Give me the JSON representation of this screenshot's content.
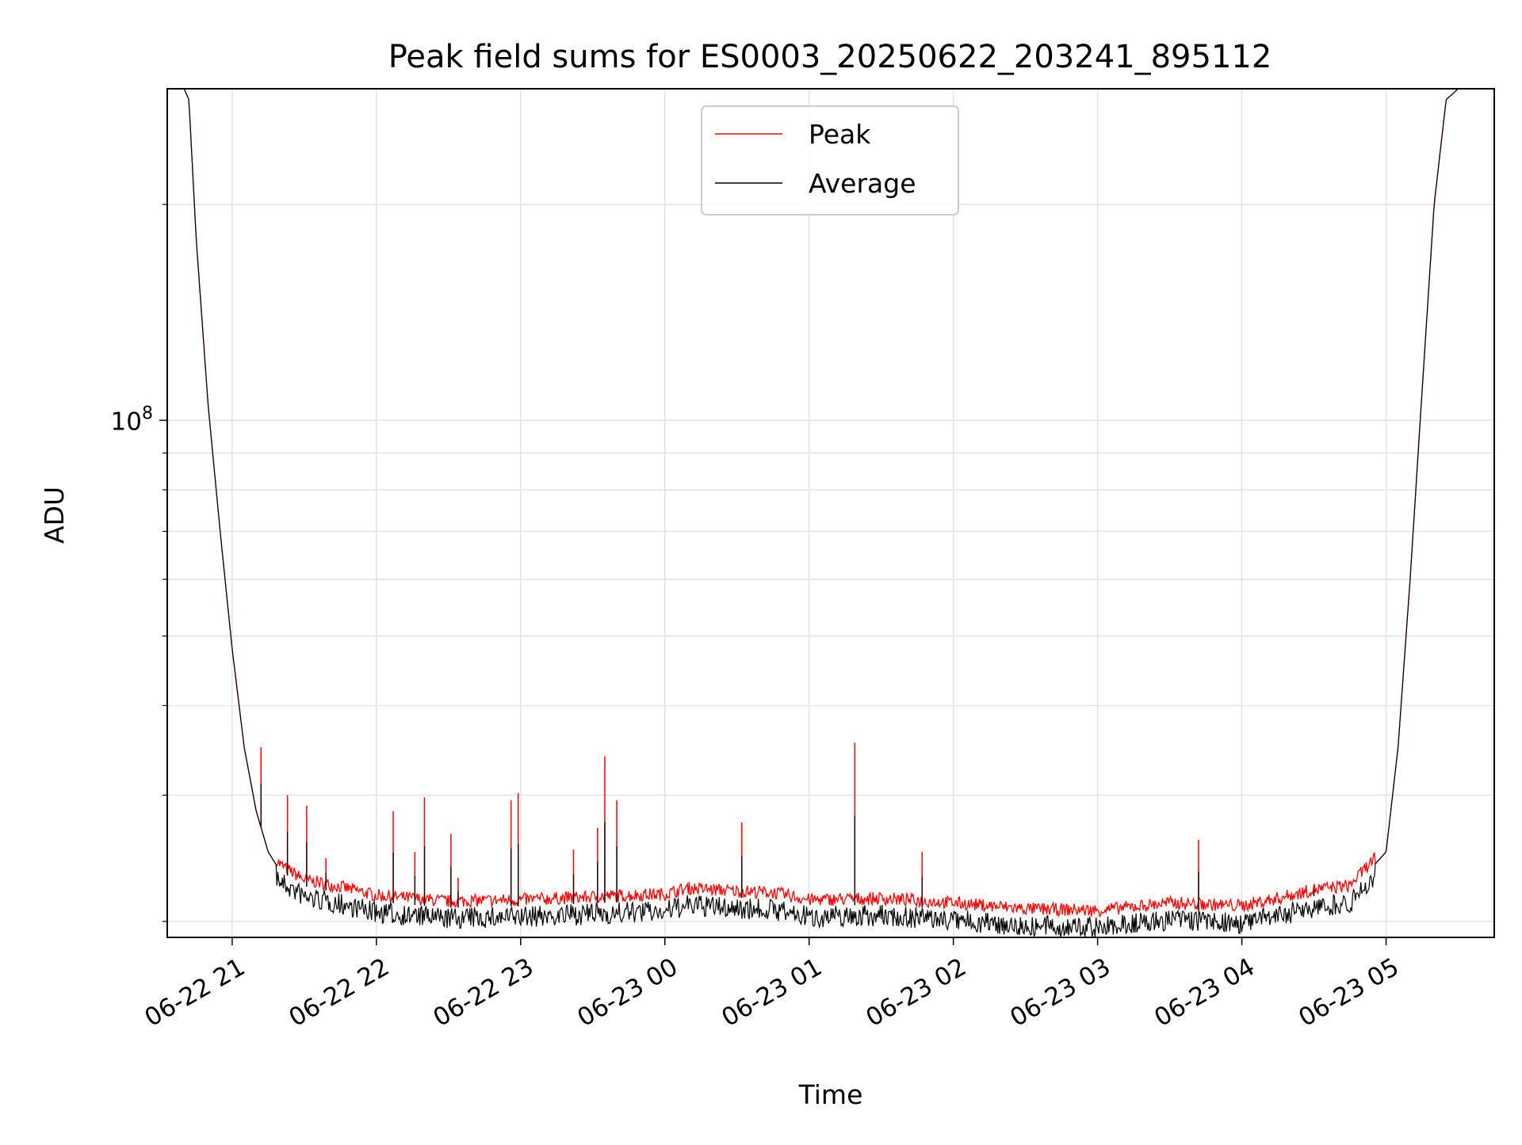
{
  "chart_data": {
    "type": "line",
    "title": "Peak field sums for ES0003_20250622_203241_895112",
    "xlabel": "Time",
    "ylabel": "ADU",
    "yscale": "log",
    "ylim": [
      19000000,
      290000000
    ],
    "xlim": [
      "2025-06-22 20:33",
      "2025-06-23 05:45"
    ],
    "grid": true,
    "legend_position": "upper center",
    "x_ticks": [
      {
        "value": "2025-06-22 21:00",
        "label": "06-22 21"
      },
      {
        "value": "2025-06-22 22:00",
        "label": "06-22 22"
      },
      {
        "value": "2025-06-22 23:00",
        "label": "06-22 23"
      },
      {
        "value": "2025-06-23 00:00",
        "label": "06-23 00"
      },
      {
        "value": "2025-06-23 01:00",
        "label": "06-23 01"
      },
      {
        "value": "2025-06-23 02:00",
        "label": "06-23 02"
      },
      {
        "value": "2025-06-23 03:00",
        "label": "06-23 03"
      },
      {
        "value": "2025-06-23 04:00",
        "label": "06-23 04"
      },
      {
        "value": "2025-06-23 05:00",
        "label": "06-23 05"
      }
    ],
    "y_major_ticks": [
      {
        "value": 100000000,
        "base": "10",
        "exponent": "8"
      }
    ],
    "y_minor_ticks": [
      20000000,
      30000000,
      40000000,
      50000000,
      60000000,
      70000000,
      80000000,
      90000000,
      200000000
    ],
    "series": [
      {
        "name": "Peak",
        "color": "#ff0000",
        "baseline": [
          [
            "2025-06-22 20:40",
            290000000
          ],
          [
            "2025-06-22 20:42",
            280000000
          ],
          [
            "2025-06-22 20:45",
            180000000
          ],
          [
            "2025-06-22 20:50",
            105000000
          ],
          [
            "2025-06-22 20:55",
            70000000
          ],
          [
            "2025-06-22 21:00",
            48000000
          ],
          [
            "2025-06-22 21:05",
            35000000
          ],
          [
            "2025-06-22 21:10",
            28500000
          ],
          [
            "2025-06-22 21:15",
            25000000
          ],
          [
            "2025-06-22 21:20",
            23500000
          ],
          [
            "2025-06-22 21:30",
            22400000
          ],
          [
            "2025-06-22 21:45",
            21900000
          ],
          [
            "2025-06-22 22:00",
            21300000
          ],
          [
            "2025-06-22 22:30",
            20900000
          ],
          [
            "2025-06-22 23:00",
            21000000
          ],
          [
            "2025-06-22 23:30",
            21200000
          ],
          [
            "2025-06-23 00:00",
            21400000
          ],
          [
            "2025-06-23 00:10",
            21800000
          ],
          [
            "2025-06-23 00:30",
            21600000
          ],
          [
            "2025-06-23 00:45",
            21500000
          ],
          [
            "2025-06-23 01:00",
            21000000
          ],
          [
            "2025-06-23 01:30",
            21100000
          ],
          [
            "2025-06-23 02:00",
            20800000
          ],
          [
            "2025-06-23 02:30",
            20400000
          ],
          [
            "2025-06-23 03:00",
            20300000
          ],
          [
            "2025-06-23 03:30",
            20800000
          ],
          [
            "2025-06-23 04:00",
            20600000
          ],
          [
            "2025-06-23 04:15",
            21100000
          ],
          [
            "2025-06-23 04:30",
            21700000
          ],
          [
            "2025-06-23 04:45",
            22000000
          ],
          [
            "2025-06-23 05:00",
            25000000
          ],
          [
            "2025-06-23 05:05",
            35000000
          ],
          [
            "2025-06-23 05:10",
            60000000
          ],
          [
            "2025-06-23 05:15",
            110000000
          ],
          [
            "2025-06-23 05:20",
            200000000
          ],
          [
            "2025-06-23 05:25",
            280000000
          ],
          [
            "2025-06-23 05:30",
            290000000
          ]
        ],
        "spikes": [
          [
            "2025-06-22 21:12",
            35000000
          ],
          [
            "2025-06-22 21:23",
            30000000
          ],
          [
            "2025-06-22 21:31",
            29000000
          ],
          [
            "2025-06-22 21:39",
            24500000
          ],
          [
            "2025-06-22 22:07",
            28500000
          ],
          [
            "2025-06-22 22:16",
            25000000
          ],
          [
            "2025-06-22 22:20",
            29800000
          ],
          [
            "2025-06-22 22:31",
            26500000
          ],
          [
            "2025-06-22 22:34",
            23000000
          ],
          [
            "2025-06-22 22:56",
            29500000
          ],
          [
            "2025-06-22 22:59",
            30200000
          ],
          [
            "2025-06-22 23:22",
            25200000
          ],
          [
            "2025-06-22 23:32",
            27000000
          ],
          [
            "2025-06-22 23:35",
            34000000
          ],
          [
            "2025-06-22 23:40",
            29500000
          ],
          [
            "2025-06-23 00:32",
            27500000
          ],
          [
            "2025-06-23 01:19",
            35500000
          ],
          [
            "2025-06-23 01:47",
            25000000
          ],
          [
            "2025-06-23 03:42",
            26000000
          ],
          [
            "2025-06-23 04:30",
            22500000
          ]
        ]
      },
      {
        "name": "Average",
        "color": "#000000",
        "baseline_like": "Peak"
      }
    ]
  }
}
